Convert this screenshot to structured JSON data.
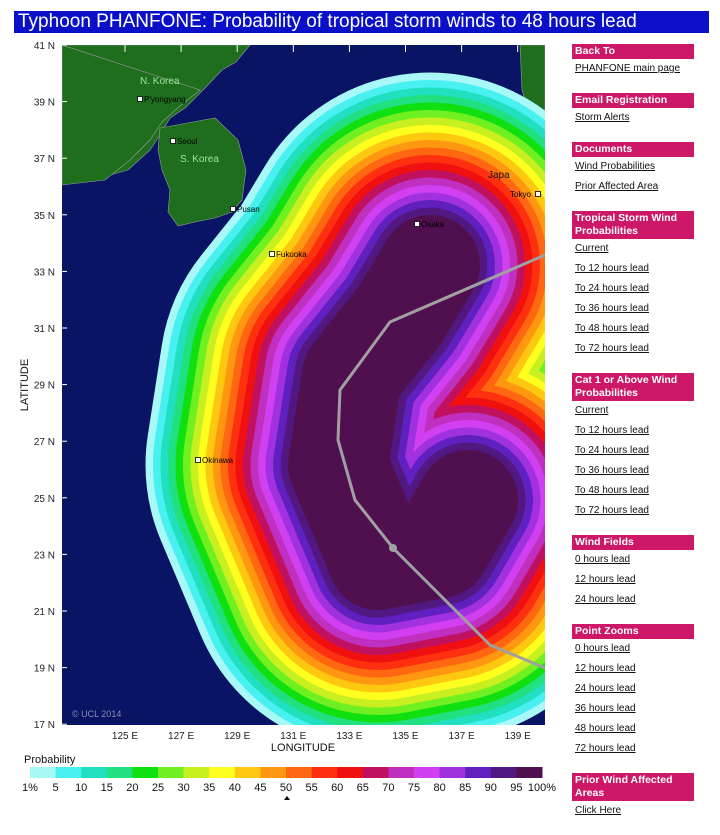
{
  "title": "Typhoon PHANFONE: Probability of tropical storm winds to 48 hours lead",
  "map": {
    "copyright": "© UCL 2014",
    "xlabel": "LONGITUDE",
    "ylabel": "LATITUDE",
    "lat_ticks": [
      "41 N",
      "39 N",
      "37 N",
      "35 N",
      "33 N",
      "31 N",
      "29 N",
      "27 N",
      "25 N",
      "23 N",
      "21 N",
      "19 N",
      "17 N"
    ],
    "lon_ticks": [
      "125 E",
      "127 E",
      "129 E",
      "131 E",
      "133 E",
      "135 E",
      "137 E",
      "139 E"
    ],
    "countries": [
      "N. Korea",
      "S. Korea",
      "Japa"
    ],
    "cities": [
      "P'yongyang",
      "Seoul",
      "Pusan",
      "Fukuoka",
      "Osaka",
      "Tokyo",
      "Okinawa"
    ],
    "colors": {
      "sea": "#0a1464",
      "land": "#1f6e1e",
      "track": "#a0a0a0"
    }
  },
  "legend": {
    "title": "Probability",
    "labels": [
      "1%",
      "5",
      "10",
      "15",
      "20",
      "25",
      "30",
      "35",
      "40",
      "45",
      "50",
      "55",
      "60",
      "65",
      "70",
      "75",
      "80",
      "85",
      "90",
      "95",
      "100%"
    ],
    "colors": [
      "#a8f8f8",
      "#48f0f0",
      "#20e0c0",
      "#20e080",
      "#10e010",
      "#70f020",
      "#c8f020",
      "#ffff20",
      "#ffc810",
      "#ff9810",
      "#ff6810",
      "#ff3010",
      "#f01010",
      "#c01060",
      "#c030c0",
      "#d040f0",
      "#a030e0",
      "#6020c0",
      "#501880",
      "#501050"
    ]
  },
  "sidebar": [
    {
      "header": "Back To",
      "links": [
        "PHANFONE main page"
      ]
    },
    {
      "header": "Email Registration",
      "links": [
        "Storm Alerts"
      ]
    },
    {
      "header": "Documents",
      "links": [
        "Wind Probabilities",
        "Prior Affected Area"
      ]
    },
    {
      "header": "Tropical Storm Wind Probabilities",
      "links": [
        "Current",
        "To 12 hours lead",
        "To 24 hours lead",
        "To 36 hours lead",
        "To 48 hours lead",
        "To 72 hours lead"
      ]
    },
    {
      "header": "Cat 1 or Above Wind Probabilities",
      "links": [
        "Current",
        "To 12 hours lead",
        "To 24 hours lead",
        "To 36 hours lead",
        "To 48 hours lead",
        "To 72 hours lead"
      ]
    },
    {
      "header": "Wind Fields",
      "links": [
        "0 hours lead",
        "12 hours lead",
        "24 hours lead"
      ]
    },
    {
      "header": "Point Zooms",
      "links": [
        "0 hours lead",
        "12 hours lead",
        "24 hours lead",
        "36 hours lead",
        "48 hours lead",
        "72 hours lead"
      ]
    },
    {
      "header": "Prior Wind Affected Areas",
      "links": [
        "Click Here"
      ]
    }
  ]
}
